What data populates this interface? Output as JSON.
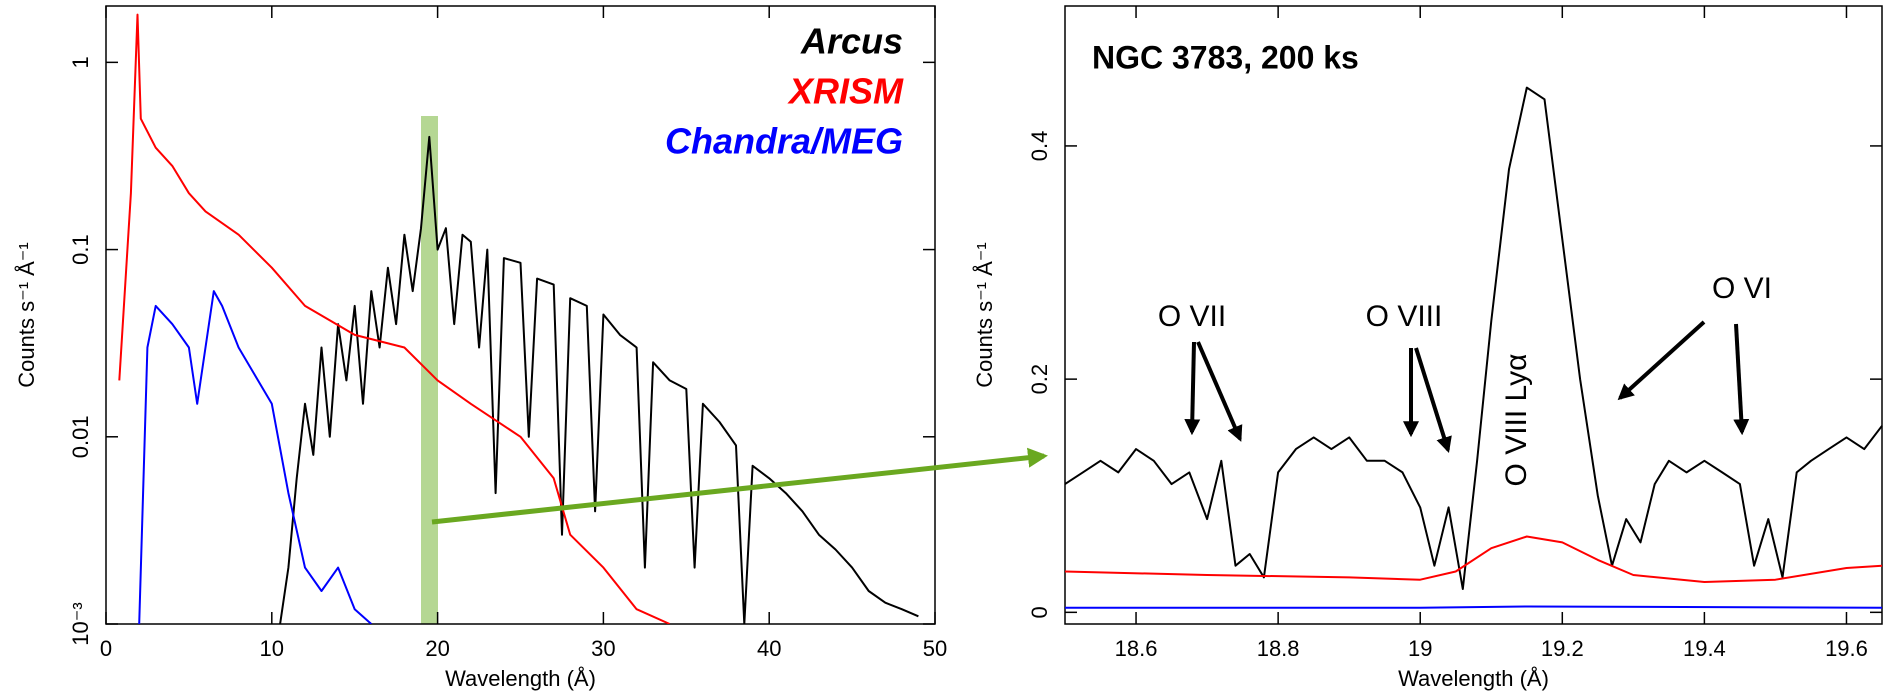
{
  "chart_data": [
    {
      "type": "line",
      "log_y": true,
      "legend": "upper right",
      "xlabel": "Wavelength (Å)",
      "ylabel": "Counts s⁻¹ Å⁻¹",
      "xlim": [
        0,
        50
      ],
      "xticks": [
        0,
        10,
        20,
        30,
        40,
        50
      ],
      "ylim": [
        0.001,
        2
      ],
      "yticks": [
        {
          "value": 0.001,
          "label": "10⁻³"
        },
        0.01,
        0.1,
        1
      ],
      "series": [
        {
          "name": "Arcus",
          "color": "#000000",
          "x": [
            10.5,
            11,
            11.5,
            12,
            12.5,
            13,
            13.5,
            14,
            14.5,
            15,
            15.5,
            16,
            16.5,
            17,
            17.5,
            18,
            18.5,
            19,
            19.5,
            20,
            20.5,
            21,
            21.5,
            22,
            22.5,
            23,
            23.5,
            24,
            25,
            25.5,
            26,
            27,
            27.5,
            28,
            29,
            29.5,
            30,
            31,
            32,
            32.5,
            33,
            34,
            35,
            35.5,
            36,
            37,
            38,
            38.5,
            39,
            40,
            41,
            42,
            43,
            44,
            45,
            46,
            47,
            48,
            49
          ],
          "values": [
            0.001,
            0.002,
            0.006,
            0.015,
            0.008,
            0.03,
            0.01,
            0.04,
            0.02,
            0.05,
            0.015,
            0.06,
            0.03,
            0.08,
            0.04,
            0.12,
            0.06,
            0.13,
            0.4,
            0.1,
            0.13,
            0.04,
            0.12,
            0.11,
            0.03,
            0.1,
            0.005,
            0.09,
            0.085,
            0.01,
            0.07,
            0.065,
            0.003,
            0.055,
            0.05,
            0.004,
            0.045,
            0.035,
            0.03,
            0.002,
            0.025,
            0.02,
            0.018,
            0.002,
            0.015,
            0.012,
            0.009,
            0.001,
            0.007,
            0.006,
            0.005,
            0.004,
            0.003,
            0.0025,
            0.002,
            0.0015,
            0.0013,
            0.0012,
            0.0011
          ]
        },
        {
          "name": "XRISM",
          "color": "#ff0000",
          "x": [
            0.8,
            1.5,
            1.9,
            2.1,
            3,
            4,
            5,
            6,
            8,
            10,
            12,
            15,
            18,
            20,
            22,
            25,
            27,
            28,
            30,
            32,
            34
          ],
          "values": [
            0.02,
            0.2,
            1.8,
            0.5,
            0.35,
            0.28,
            0.2,
            0.16,
            0.12,
            0.08,
            0.05,
            0.035,
            0.03,
            0.02,
            0.015,
            0.01,
            0.006,
            0.003,
            0.002,
            0.0012,
            0.001
          ]
        },
        {
          "name": "Chandra/MEG",
          "color": "#0000ff",
          "x": [
            2,
            2.5,
            3,
            4,
            5,
            5.5,
            6.5,
            7,
            8,
            10,
            11,
            12,
            13,
            14,
            15,
            16
          ],
          "values": [
            0.001,
            0.03,
            0.05,
            0.04,
            0.03,
            0.015,
            0.06,
            0.05,
            0.03,
            0.015,
            0.005,
            0.002,
            0.0015,
            0.002,
            0.0012,
            0.001
          ]
        }
      ]
    },
    {
      "type": "line",
      "log_y": false,
      "title": "NGC 3783, 200 ks",
      "xlabel": "Wavelength (Å)",
      "ylabel": "Counts s⁻¹ Å⁻¹",
      "annotations": [
        "O VII",
        "O VIII",
        "O VI",
        "O VIII Lyα"
      ],
      "xlim": [
        18.5,
        19.65
      ],
      "xticks": [
        18.6,
        18.8,
        19,
        19.2,
        19.4,
        19.6
      ],
      "ylim": [
        -0.01,
        0.52
      ],
      "yticks": [
        0,
        0.2,
        0.4
      ],
      "series": [
        {
          "color": "#000000",
          "x": [
            18.5,
            18.525,
            18.55,
            18.575,
            18.6,
            18.625,
            18.65,
            18.675,
            18.7,
            18.72,
            18.74,
            18.76,
            18.78,
            18.8,
            18.825,
            18.85,
            18.875,
            18.9,
            18.925,
            18.95,
            18.975,
            19.0,
            19.02,
            19.04,
            19.06,
            19.08,
            19.1,
            19.125,
            19.15,
            19.175,
            19.2,
            19.225,
            19.25,
            19.27,
            19.29,
            19.31,
            19.33,
            19.35,
            19.375,
            19.4,
            19.425,
            19.45,
            19.47,
            19.49,
            19.51,
            19.53,
            19.55,
            19.575,
            19.6,
            19.625,
            19.65
          ],
          "values": [
            0.11,
            0.12,
            0.13,
            0.12,
            0.14,
            0.13,
            0.11,
            0.12,
            0.08,
            0.13,
            0.04,
            0.05,
            0.03,
            0.12,
            0.14,
            0.15,
            0.14,
            0.15,
            0.13,
            0.13,
            0.12,
            0.09,
            0.04,
            0.09,
            0.02,
            0.13,
            0.25,
            0.38,
            0.45,
            0.44,
            0.32,
            0.2,
            0.1,
            0.04,
            0.08,
            0.06,
            0.11,
            0.13,
            0.12,
            0.13,
            0.12,
            0.11,
            0.04,
            0.08,
            0.03,
            0.12,
            0.13,
            0.14,
            0.15,
            0.14,
            0.16
          ]
        },
        {
          "color": "#ff0000",
          "x": [
            18.5,
            18.7,
            18.9,
            19.0,
            19.05,
            19.1,
            19.15,
            19.2,
            19.25,
            19.3,
            19.4,
            19.5,
            19.6,
            19.65
          ],
          "values": [
            0.035,
            0.032,
            0.03,
            0.028,
            0.035,
            0.055,
            0.065,
            0.06,
            0.045,
            0.032,
            0.026,
            0.028,
            0.038,
            0.04
          ]
        },
        {
          "color": "#0000ff",
          "x": [
            18.5,
            19.0,
            19.15,
            19.65
          ],
          "values": [
            0.004,
            0.004,
            0.005,
            0.004
          ]
        }
      ]
    }
  ]
}
